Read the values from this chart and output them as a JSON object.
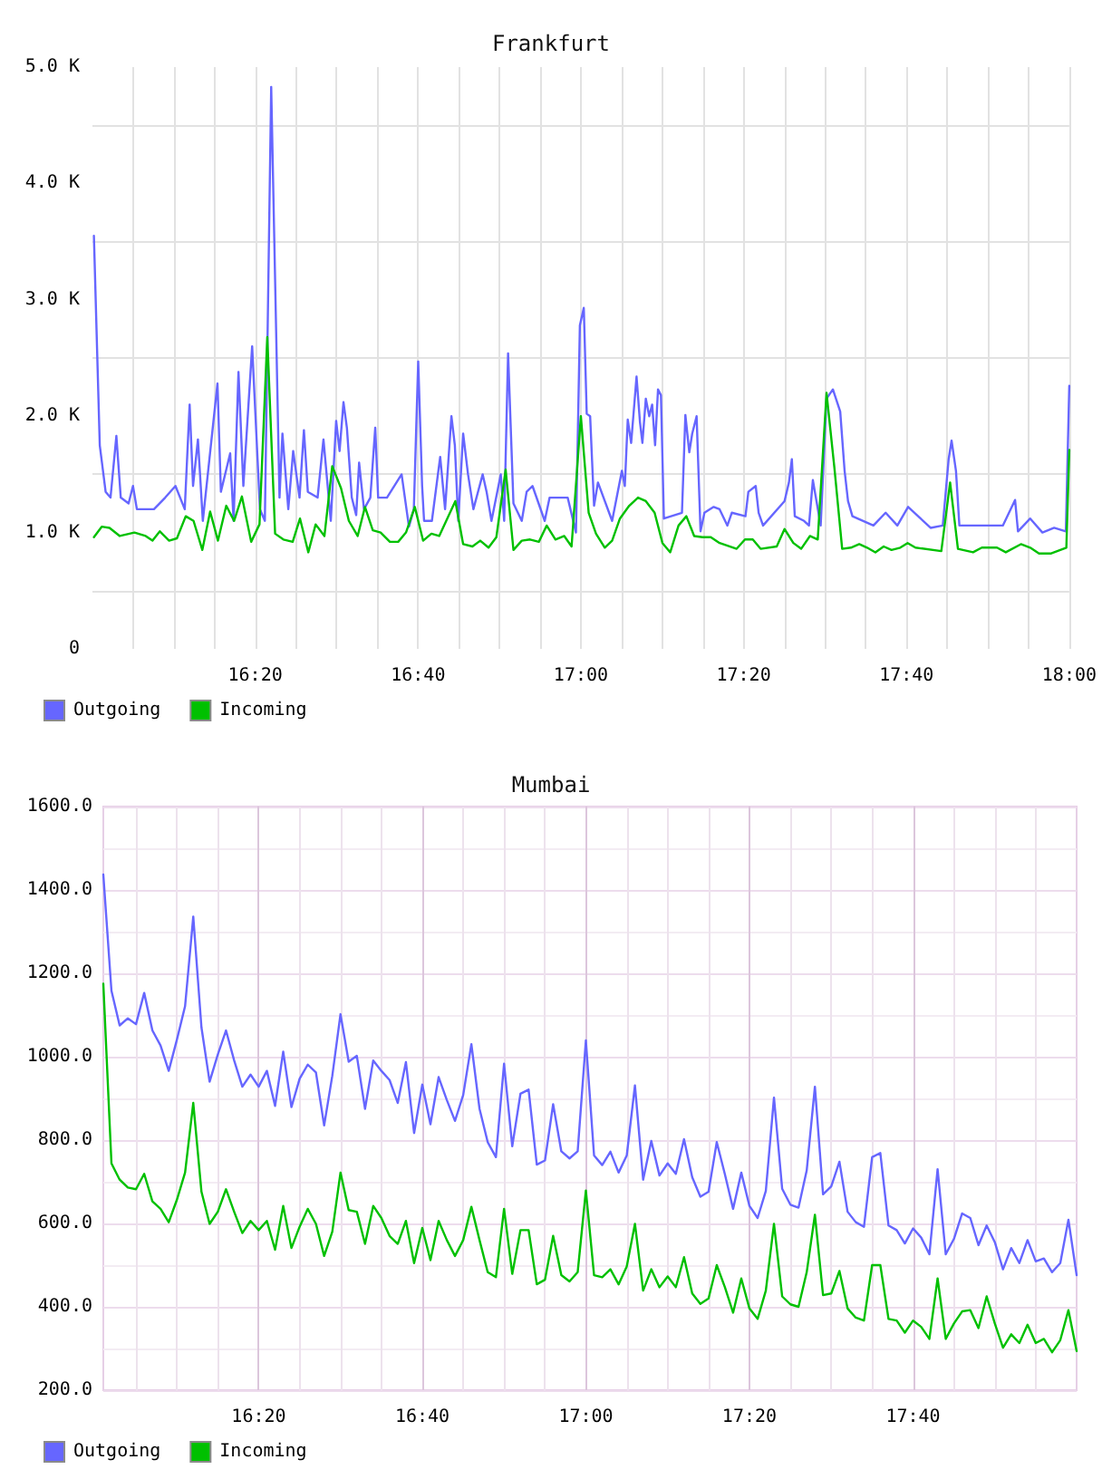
{
  "chart_data": [
    {
      "type": "line",
      "title": "Frankfurt",
      "xlim": [
        16,
        18.0
      ],
      "ylim": [
        0,
        5000
      ],
      "xticks": [
        {
          "value": 16.0833,
          "label": null
        },
        {
          "value": 16.1667,
          "label": null
        },
        {
          "value": 16.25,
          "label": null
        },
        {
          "value": 16.3333,
          "label": "16:20"
        },
        {
          "value": 16.4167,
          "label": null
        },
        {
          "value": 16.5,
          "label": null
        },
        {
          "value": 16.5833,
          "label": null
        },
        {
          "value": 16.6667,
          "label": "16:40"
        },
        {
          "value": 16.75,
          "label": null
        },
        {
          "value": 16.8333,
          "label": null
        },
        {
          "value": 16.9167,
          "label": null
        },
        {
          "value": 17,
          "label": "17:00"
        },
        {
          "value": 17.0833,
          "label": null
        },
        {
          "value": 17.1667,
          "label": null
        },
        {
          "value": 17.25,
          "label": null
        },
        {
          "value": 17.3333,
          "label": "17:20"
        },
        {
          "value": 17.4167,
          "label": null
        },
        {
          "value": 17.5,
          "label": null
        },
        {
          "value": 17.5833,
          "label": null
        },
        {
          "value": 17.6667,
          "label": "17:40"
        },
        {
          "value": 17.75,
          "label": null
        },
        {
          "value": 17.8333,
          "label": null
        },
        {
          "value": 17.9167,
          "label": null
        },
        {
          "value": 18,
          "label": "18:00"
        }
      ],
      "yticks": [
        0,
        {
          "value": 500,
          "label": null
        },
        {
          "value": 1000,
          "label": "1.0 K"
        },
        {
          "value": 1500,
          "label": null
        },
        {
          "value": 2000,
          "label": "2.0 K"
        },
        {
          "value": 2500,
          "label": null
        },
        {
          "value": 3000,
          "label": "3.0 K"
        },
        {
          "value": 3500,
          "label": null
        },
        {
          "value": 4000,
          "label": "4.0 K"
        },
        {
          "value": 4500,
          "label": null
        },
        {
          "value": 5000,
          "label": "5.0 K"
        }
      ],
      "grid": true,
      "legend": "bottom left",
      "marker": "none",
      "series": [
        {
          "name": "Outgoing",
          "color": "#6666ff",
          "x": [
            16.003,
            16.015,
            16.027,
            16.037,
            16.049,
            16.058,
            16.074,
            16.083,
            16.091,
            16.126,
            16.149,
            16.17,
            16.189,
            16.199,
            16.206,
            16.216,
            16.226,
            16.256,
            16.263,
            16.282,
            16.289,
            16.299,
            16.309,
            16.327,
            16.343,
            16.353,
            16.366,
            16.383,
            16.389,
            16.401,
            16.411,
            16.424,
            16.433,
            16.441,
            16.461,
            16.473,
            16.488,
            16.499,
            16.506,
            16.514,
            16.521,
            16.531,
            16.54,
            16.546,
            16.556,
            16.569,
            16.579,
            16.585,
            16.603,
            16.633,
            16.648,
            16.658,
            16.667,
            16.675,
            16.679,
            16.695,
            16.712,
            16.722,
            16.735,
            16.742,
            16.749,
            16.759,
            16.769,
            16.78,
            16.799,
            16.807,
            16.817,
            16.836,
            16.843,
            16.851,
            16.862,
            16.879,
            16.889,
            16.901,
            16.926,
            16.936,
            16.973,
            16.99,
            16.998,
            17.006,
            17.012,
            17.019,
            17.027,
            17.035,
            17.064,
            17.084,
            17.09,
            17.096,
            17.103,
            17.114,
            17.121,
            17.126,
            17.133,
            17.14,
            17.146,
            17.152,
            17.158,
            17.164,
            17.17,
            17.207,
            17.214,
            17.222,
            17.228,
            17.237,
            17.245,
            17.253,
            17.272,
            17.284,
            17.3,
            17.309,
            17.337,
            17.343,
            17.358,
            17.364,
            17.373,
            17.417,
            17.426,
            17.432,
            17.438,
            17.457,
            17.467,
            17.475,
            17.491,
            17.503,
            17.516,
            17.531,
            17.54,
            17.547,
            17.556,
            17.599,
            17.624,
            17.648,
            17.67,
            17.716,
            17.741,
            17.753,
            17.759,
            17.768,
            17.775,
            17.796,
            17.83,
            17.864,
            17.889,
            17.895,
            17.92,
            17.945,
            17.969,
            17.993,
            18.0
          ],
          "values": [
            3550,
            1750,
            1350,
            1300,
            1830,
            1300,
            1250,
            1400,
            1200,
            1200,
            1300,
            1400,
            1200,
            2100,
            1400,
            1800,
            1100,
            2280,
            1350,
            1680,
            1100,
            2380,
            1400,
            2600,
            1200,
            1100,
            4830,
            1300,
            1850,
            1200,
            1700,
            1300,
            1880,
            1350,
            1300,
            1800,
            1100,
            1960,
            1700,
            2120,
            1900,
            1300,
            1150,
            1600,
            1200,
            1300,
            1900,
            1300,
            1300,
            1500,
            1050,
            1200,
            2470,
            1400,
            1100,
            1100,
            1650,
            1200,
            2000,
            1750,
            1100,
            1850,
            1500,
            1200,
            1500,
            1350,
            1100,
            1500,
            1100,
            2540,
            1250,
            1100,
            1350,
            1400,
            1100,
            1300,
            1300,
            1000,
            2780,
            2930,
            2020,
            2000,
            1230,
            1430,
            1100,
            1530,
            1400,
            1970,
            1770,
            2340,
            1950,
            1770,
            2150,
            2000,
            2100,
            1750,
            2230,
            2180,
            1120,
            1170,
            2010,
            1690,
            1850,
            2000,
            1010,
            1170,
            1220,
            1200,
            1060,
            1170,
            1140,
            1350,
            1400,
            1170,
            1060,
            1270,
            1430,
            1630,
            1140,
            1100,
            1060,
            1450,
            1060,
            2150,
            2230,
            2040,
            1530,
            1270,
            1140,
            1060,
            1170,
            1060,
            1220,
            1040,
            1060,
            1630,
            1790,
            1530,
            1060,
            1060,
            1060,
            1060,
            1280,
            1010,
            1120,
            1000,
            1040,
            1010,
            2260
          ]
        },
        {
          "name": "Incoming",
          "color": "#00c000",
          "x": [
            16.003,
            16.019,
            16.035,
            16.056,
            16.086,
            16.109,
            16.123,
            16.138,
            16.157,
            16.173,
            16.191,
            16.207,
            16.225,
            16.241,
            16.257,
            16.274,
            16.29,
            16.306,
            16.325,
            16.342,
            16.358,
            16.374,
            16.391,
            16.41,
            16.425,
            16.442,
            16.457,
            16.475,
            16.491,
            16.509,
            16.525,
            16.543,
            16.558,
            16.574,
            16.59,
            16.609,
            16.626,
            16.642,
            16.66,
            16.677,
            16.694,
            16.71,
            16.743,
            16.759,
            16.778,
            16.794,
            16.811,
            16.827,
            16.846,
            16.862,
            16.879,
            16.896,
            16.914,
            16.93,
            16.948,
            16.966,
            16.981,
            17.0,
            17.016,
            17.031,
            17.049,
            17.064,
            17.08,
            17.099,
            17.117,
            17.133,
            17.151,
            17.167,
            17.183,
            17.2,
            17.216,
            17.232,
            17.249,
            17.266,
            17.284,
            17.319,
            17.336,
            17.352,
            17.368,
            17.401,
            17.417,
            17.435,
            17.451,
            17.469,
            17.485,
            17.503,
            17.519,
            17.535,
            17.553,
            17.57,
            17.586,
            17.603,
            17.62,
            17.636,
            17.654,
            17.669,
            17.685,
            17.738,
            17.756,
            17.772,
            17.803,
            17.821,
            17.852,
            17.87,
            17.901,
            17.92,
            17.938,
            17.963,
            17.994,
            18.0
          ],
          "values": [
            960,
            1050,
            1040,
            970,
            1000,
            970,
            930,
            1010,
            930,
            950,
            1140,
            1100,
            850,
            1180,
            930,
            1230,
            1100,
            1310,
            920,
            1070,
            2680,
            990,
            940,
            920,
            1120,
            830,
            1070,
            970,
            1570,
            1380,
            1100,
            970,
            1220,
            1020,
            1000,
            920,
            920,
            1000,
            1220,
            930,
            990,
            970,
            1270,
            900,
            880,
            930,
            870,
            960,
            1540,
            850,
            930,
            940,
            920,
            1060,
            940,
            970,
            880,
            2000,
            1170,
            990,
            870,
            930,
            1120,
            1230,
            1300,
            1270,
            1170,
            910,
            830,
            1060,
            1140,
            970,
            960,
            960,
            910,
            860,
            940,
            940,
            860,
            880,
            1030,
            910,
            860,
            970,
            940,
            2200,
            1560,
            860,
            870,
            900,
            870,
            830,
            880,
            850,
            870,
            910,
            870,
            840,
            1430,
            860,
            830,
            870,
            870,
            830,
            900,
            870,
            820,
            820,
            870,
            1710
          ]
        }
      ]
    },
    {
      "type": "line",
      "title": "Mumbai",
      "xlim": [
        16.0167,
        18
      ],
      "ylim": [
        200,
        1600
      ],
      "xticks": [
        {
          "value": 16.0833,
          "label": null
        },
        {
          "value": 16.1667,
          "label": null
        },
        {
          "value": 16.25,
          "label": null
        },
        {
          "value": 16.3333,
          "label": "16:20"
        },
        {
          "value": 16.4167,
          "label": null
        },
        {
          "value": 16.5,
          "label": null
        },
        {
          "value": 16.5833,
          "label": null
        },
        {
          "value": 16.6667,
          "label": "16:40"
        },
        {
          "value": 16.75,
          "label": null
        },
        {
          "value": 16.8333,
          "label": null
        },
        {
          "value": 16.9167,
          "label": null
        },
        {
          "value": 17,
          "label": "17:00"
        },
        {
          "value": 17.0833,
          "label": null
        },
        {
          "value": 17.1667,
          "label": null
        },
        {
          "value": 17.25,
          "label": null
        },
        {
          "value": 17.3333,
          "label": "17:20"
        },
        {
          "value": 17.4167,
          "label": null
        },
        {
          "value": 17.5,
          "label": null
        },
        {
          "value": 17.5833,
          "label": null
        },
        {
          "value": 17.6667,
          "label": "17:40"
        },
        {
          "value": 17.75,
          "label": null
        },
        {
          "value": 17.8333,
          "label": null
        },
        {
          "value": 17.9167,
          "label": null
        }
      ],
      "yticks": [
        {
          "value": 200,
          "label": "200.0"
        },
        {
          "value": 300,
          "label": null
        },
        {
          "value": 400,
          "label": "400.0"
        },
        {
          "value": 500,
          "label": null
        },
        {
          "value": 600,
          "label": "600.0"
        },
        {
          "value": 700,
          "label": null
        },
        {
          "value": 800,
          "label": "800.0"
        },
        {
          "value": 900,
          "label": null
        },
        {
          "value": 1000,
          "label": "1000.0"
        },
        {
          "value": 1100,
          "label": null
        },
        {
          "value": 1200,
          "label": "1200.0"
        },
        {
          "value": 1300,
          "label": null
        },
        {
          "value": 1400,
          "label": "1400.0"
        },
        {
          "value": 1500,
          "label": null
        },
        {
          "value": 1600,
          "label": "1600.0"
        }
      ],
      "grid": true,
      "legend": "bottom left",
      "marker": "none",
      "x": [
        16.0167,
        16.0333,
        16.05,
        16.0667,
        16.0833,
        16.1,
        16.1167,
        16.1333,
        16.15,
        16.1667,
        16.1833,
        16.2,
        16.2167,
        16.2333,
        16.25,
        16.2667,
        16.2833,
        16.3,
        16.3167,
        16.3333,
        16.35,
        16.3667,
        16.3833,
        16.4,
        16.4167,
        16.4333,
        16.45,
        16.4667,
        16.4833,
        16.5,
        16.5167,
        16.5333,
        16.55,
        16.5667,
        16.5833,
        16.6,
        16.6167,
        16.6333,
        16.65,
        16.6667,
        16.6833,
        16.7,
        16.7167,
        16.7333,
        16.75,
        16.7667,
        16.7833,
        16.8,
        16.8167,
        16.8333,
        16.85,
        16.8667,
        16.8833,
        16.9,
        16.9167,
        16.9333,
        16.95,
        16.9667,
        16.9833,
        17,
        17.0167,
        17.0333,
        17.05,
        17.0667,
        17.0833,
        17.1,
        17.1167,
        17.1333,
        17.15,
        17.1667,
        17.1833,
        17.2,
        17.2167,
        17.2333,
        17.25,
        17.2667,
        17.2833,
        17.3,
        17.3167,
        17.3333,
        17.35,
        17.3667,
        17.3833,
        17.4,
        17.4167,
        17.4333,
        17.45,
        17.4667,
        17.4833,
        17.5,
        17.5167,
        17.5333,
        17.55,
        17.5667,
        17.5833,
        17.6,
        17.6167,
        17.6333,
        17.65,
        17.6667,
        17.6833,
        17.7,
        17.7167,
        17.7333,
        17.75,
        17.7667,
        17.7833,
        17.8,
        17.8167,
        17.8333,
        17.85,
        17.8667,
        17.8833,
        17.9,
        17.9167,
        17.9333,
        17.95,
        17.9667,
        17.9833,
        18
      ],
      "series": [
        {
          "name": "Outgoing",
          "color": "#6666ff",
          "values": [
            1437,
            1158,
            1075,
            1092,
            1078,
            1153,
            1063,
            1027,
            966,
            1041,
            1121,
            1336,
            1070,
            940,
            1005,
            1063,
            991,
            928,
            957,
            928,
            966,
            882,
            1012,
            879,
            947,
            981,
            962,
            835,
            954,
            1102,
            988,
            1002,
            875,
            991,
            966,
            944,
            889,
            987,
            817,
            933,
            838,
            951,
            896,
            846,
            908,
            1030,
            875,
            795,
            759,
            983,
            785,
            911,
            921,
            741,
            751,
            886,
            773,
            756,
            773,
            1039,
            763,
            740,
            772,
            722,
            763,
            931,
            705,
            798,
            715,
            744,
            719,
            802,
            711,
            664,
            676,
            795,
            718,
            635,
            722,
            642,
            613,
            678,
            902,
            683,
            645,
            638,
            727,
            928,
            670,
            689,
            748,
            628,
            603,
            592,
            759,
            769,
            595,
            584,
            552,
            588,
            566,
            526,
            730,
            526,
            563,
            624,
            613,
            548,
            595,
            555,
            490,
            541,
            505,
            560,
            509,
            516,
            483,
            505,
            609,
            476
          ]
        },
        {
          "name": "Incoming",
          "color": "#00c000",
          "values": [
            1175,
            744,
            705,
            686,
            682,
            719,
            653,
            635,
            603,
            657,
            722,
            889,
            676,
            599,
            628,
            682,
            628,
            577,
            606,
            584,
            606,
            537,
            642,
            541,
            592,
            635,
            599,
            522,
            580,
            722,
            632,
            628,
            551,
            642,
            613,
            570,
            551,
            606,
            505,
            589,
            512,
            606,
            560,
            522,
            560,
            640,
            560,
            483,
            471,
            635,
            479,
            584,
            584,
            454,
            465,
            570,
            476,
            461,
            483,
            679,
            476,
            471,
            490,
            454,
            497,
            599,
            439,
            490,
            447,
            473,
            447,
            519,
            432,
            407,
            420,
            500,
            447,
            386,
            468,
            396,
            371,
            439,
            599,
            425,
            406,
            400,
            483,
            621,
            428,
            432,
            486,
            396,
            374,
            367,
            500,
            500,
            371,
            367,
            338,
            367,
            352,
            323,
            468,
            323,
            360,
            389,
            392,
            349,
            425,
            360,
            302,
            334,
            313,
            357,
            313,
            323,
            291,
            320,
            392,
            294
          ]
        }
      ]
    }
  ]
}
